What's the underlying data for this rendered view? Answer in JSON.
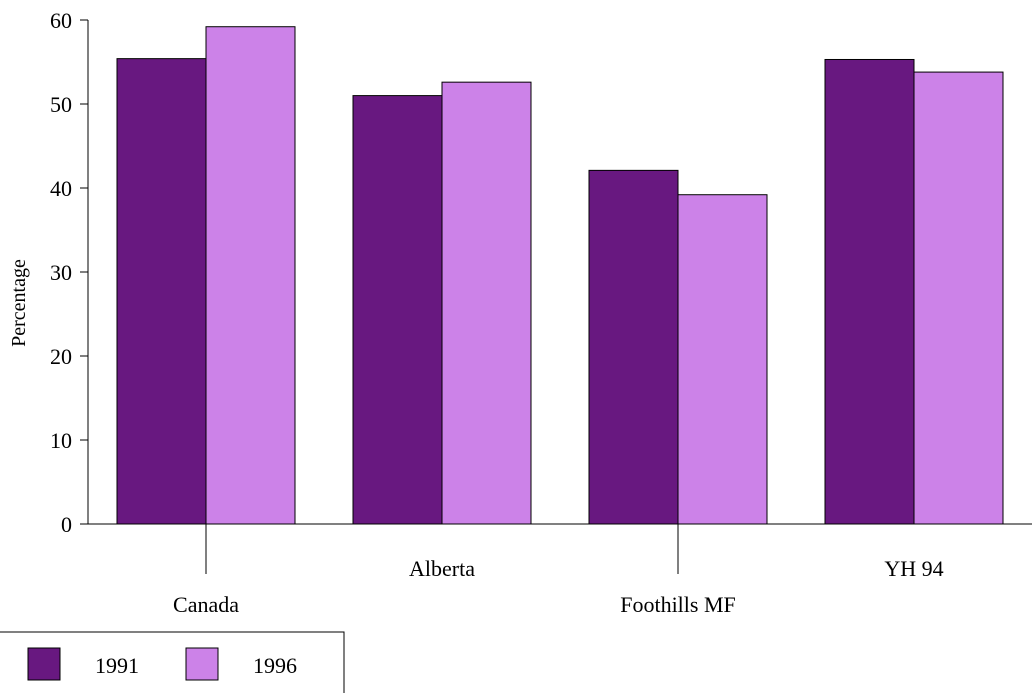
{
  "chart_data": {
    "type": "bar",
    "title": "",
    "xlabel": "",
    "ylabel": "Percentage",
    "ylim": [
      0,
      60
    ],
    "yticks": [
      0,
      10,
      20,
      30,
      40,
      50,
      60
    ],
    "categories": [
      "Canada",
      "Alberta",
      "Foothills MF",
      "YH 94"
    ],
    "series": [
      {
        "name": "1991",
        "color": "#681880",
        "values": [
          55.4,
          51.0,
          42.1,
          55.3
        ]
      },
      {
        "name": "1996",
        "color": "#cc82e8",
        "values": [
          59.2,
          52.6,
          39.2,
          53.8
        ]
      }
    ],
    "legend_position": "bottom-left",
    "grid": false
  }
}
